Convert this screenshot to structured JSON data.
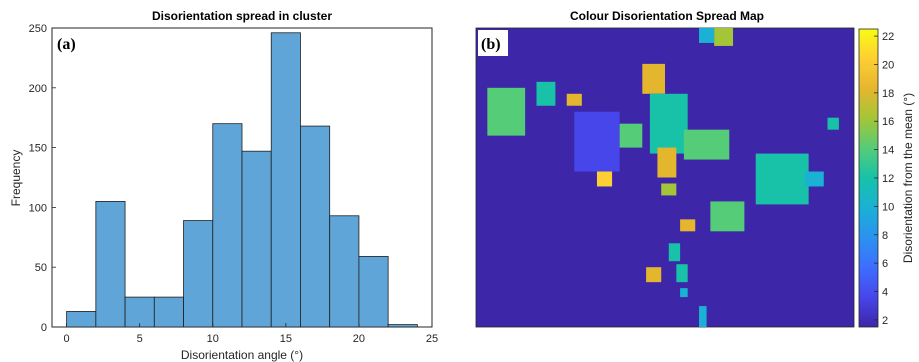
{
  "chart_data": [
    {
      "type": "bar",
      "panel_label": "(a)",
      "title": "Disorientation spread in cluster",
      "xlabel": "Disorientation angle (°)",
      "ylabel": "Frequency",
      "bin_edges": [
        0,
        2,
        4,
        6,
        8,
        10,
        12,
        14,
        16,
        18,
        20,
        22,
        24
      ],
      "values": [
        13,
        105,
        25,
        25,
        89,
        170,
        147,
        246,
        168,
        93,
        59,
        2
      ],
      "xlim": [
        -1,
        25
      ],
      "ylim": [
        0,
        250
      ],
      "xticks": [
        "0",
        "5",
        "10",
        "15",
        "20",
        "25"
      ],
      "yticks": [
        "0",
        "50",
        "100",
        "150",
        "200",
        "250"
      ],
      "bar_color": "#5fa5d8",
      "edge_color": "#1f1f1f"
    },
    {
      "type": "heatmap",
      "panel_label": "(b)",
      "title": "Colour Disorientation Spread Map",
      "colorbar_label": "Disorientation from the mean (°)",
      "colorbar_range": [
        1.5,
        22.5
      ],
      "colorbar_ticks": [
        "2",
        "4",
        "6",
        "8",
        "10",
        "12",
        "14",
        "16",
        "18",
        "20",
        "22"
      ],
      "background_color": "#3e26a8",
      "colormap": [
        "#3e26a8",
        "#4746eb",
        "#3d6efe",
        "#2a92f1",
        "#1ab1d4",
        "#17c2a8",
        "#55cc78",
        "#a4c537",
        "#e4b62e",
        "#fdcf32",
        "#f9fb15"
      ],
      "regions": [
        {
          "x": 0.03,
          "y": 0.2,
          "w": 0.1,
          "h": 0.16,
          "value": 14
        },
        {
          "x": 0.16,
          "y": 0.18,
          "w": 0.05,
          "h": 0.08,
          "value": 13
        },
        {
          "x": 0.24,
          "y": 0.22,
          "w": 0.04,
          "h": 0.04,
          "value": 19
        },
        {
          "x": 0.26,
          "y": 0.28,
          "w": 0.12,
          "h": 0.2,
          "value": 4
        },
        {
          "x": 0.32,
          "y": 0.48,
          "w": 0.04,
          "h": 0.05,
          "value": 20
        },
        {
          "x": 0.38,
          "y": 0.32,
          "w": 0.06,
          "h": 0.08,
          "value": 15
        },
        {
          "x": 0.44,
          "y": 0.12,
          "w": 0.06,
          "h": 0.1,
          "value": 19
        },
        {
          "x": 0.46,
          "y": 0.22,
          "w": 0.1,
          "h": 0.2,
          "value": 11
        },
        {
          "x": 0.48,
          "y": 0.4,
          "w": 0.05,
          "h": 0.1,
          "value": 19
        },
        {
          "x": 0.55,
          "y": 0.34,
          "w": 0.12,
          "h": 0.1,
          "value": 14
        },
        {
          "x": 0.59,
          "y": 0.0,
          "w": 0.04,
          "h": 0.05,
          "value": 10
        },
        {
          "x": 0.63,
          "y": 0.0,
          "w": 0.05,
          "h": 0.06,
          "value": 16
        },
        {
          "x": 0.74,
          "y": 0.42,
          "w": 0.14,
          "h": 0.17,
          "value": 11
        },
        {
          "x": 0.87,
          "y": 0.48,
          "w": 0.05,
          "h": 0.05,
          "value": 10
        },
        {
          "x": 0.93,
          "y": 0.3,
          "w": 0.03,
          "h": 0.04,
          "value": 13
        },
        {
          "x": 0.62,
          "y": 0.58,
          "w": 0.09,
          "h": 0.1,
          "value": 14
        },
        {
          "x": 0.49,
          "y": 0.52,
          "w": 0.04,
          "h": 0.04,
          "value": 17
        },
        {
          "x": 0.54,
          "y": 0.64,
          "w": 0.04,
          "h": 0.04,
          "value": 19
        },
        {
          "x": 0.51,
          "y": 0.72,
          "w": 0.03,
          "h": 0.06,
          "value": 13
        },
        {
          "x": 0.45,
          "y": 0.8,
          "w": 0.04,
          "h": 0.05,
          "value": 18
        },
        {
          "x": 0.53,
          "y": 0.79,
          "w": 0.03,
          "h": 0.06,
          "value": 13
        },
        {
          "x": 0.54,
          "y": 0.87,
          "w": 0.02,
          "h": 0.03,
          "value": 10
        },
        {
          "x": 0.59,
          "y": 0.93,
          "w": 0.02,
          "h": 0.07,
          "value": 9
        }
      ]
    }
  ]
}
